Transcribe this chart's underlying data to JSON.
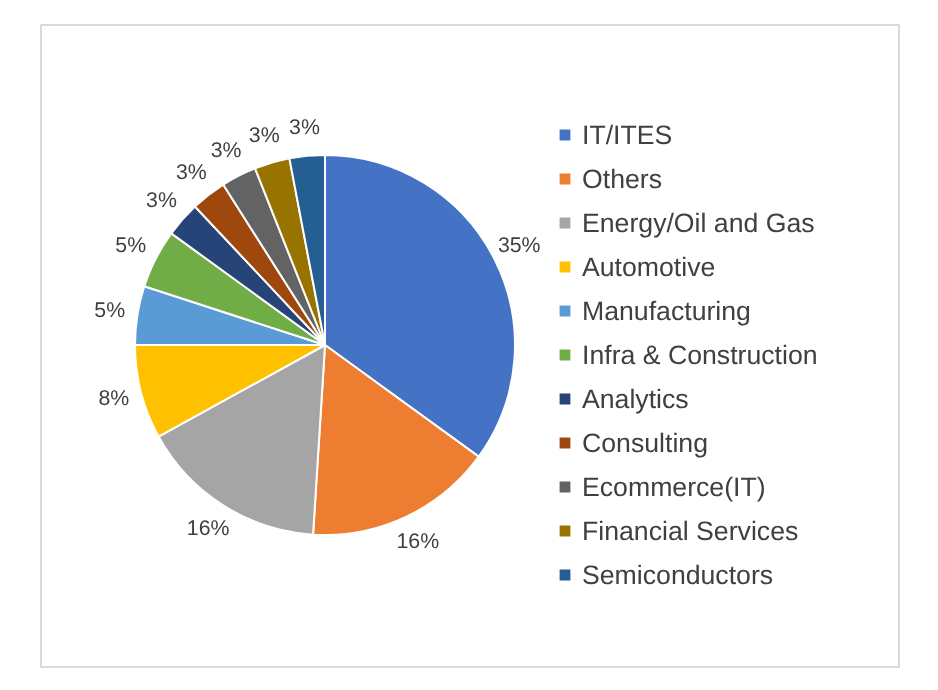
{
  "chart_data": {
    "type": "pie",
    "categories": [
      "IT/ITES",
      "Others",
      "Energy/Oil and Gas",
      "Automotive",
      "Manufacturing",
      "Infra & Construction",
      "Analytics",
      "Consulting",
      "Ecommerce(IT)",
      "Financial Services",
      "Semiconductors"
    ],
    "values": [
      35,
      16,
      16,
      8,
      5,
      5,
      3,
      3,
      3,
      3,
      3
    ],
    "value_labels": [
      "35%",
      "16%",
      "16%",
      "8%",
      "5%",
      "5%",
      "3%",
      "3%",
      "3%",
      "3%",
      "3%"
    ],
    "colors": [
      "#4472c4",
      "#ed7d31",
      "#a5a5a5",
      "#ffc000",
      "#5b9bd5",
      "#70ad47",
      "#264478",
      "#9e480e",
      "#636363",
      "#997300",
      "#255e91"
    ],
    "legend": "right"
  }
}
